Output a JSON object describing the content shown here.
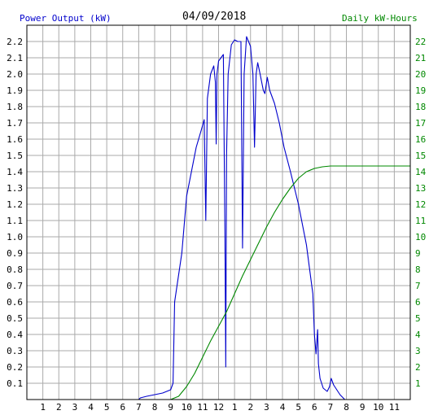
{
  "header": {
    "left_label": "Power Output (kW)",
    "date": "04/09/2018",
    "right_label": "Daily kW-Hours"
  },
  "colors": {
    "power": "#0000cc",
    "energy": "#008800",
    "grid": "#aaaaaa",
    "frame": "#000000"
  },
  "chart_data": {
    "type": "line",
    "title": "04/09/2018",
    "x_tick_labels": [
      "1",
      "2",
      "3",
      "4",
      "5",
      "6",
      "7",
      "8",
      "9",
      "10",
      "11",
      "12",
      "1",
      "2",
      "3",
      "4",
      "5",
      "6",
      "7",
      "8",
      "9",
      "10",
      "11"
    ],
    "x_unit": "hour of day (0-24)",
    "xlim": [
      0,
      24
    ],
    "ylim_left": [
      0,
      2.3
    ],
    "ylim_right": [
      0,
      23
    ],
    "y_left_ticks": [
      "0.1",
      "0.2",
      "0.3",
      "0.4",
      "0.5",
      "0.6",
      "0.7",
      "0.8",
      "0.9",
      "1.0",
      "1.1",
      "1.2",
      "1.3",
      "1.4",
      "1.5",
      "1.6",
      "1.7",
      "1.8",
      "1.9",
      "2.0",
      "2.1",
      "2.2"
    ],
    "y_right_ticks": [
      "1",
      "2",
      "3",
      "4",
      "5",
      "6",
      "7",
      "8",
      "9",
      "10",
      "11",
      "12",
      "13",
      "14",
      "15",
      "16",
      "17",
      "18",
      "19",
      "20",
      "21",
      "22"
    ],
    "grid": true,
    "series": [
      {
        "name": "Power Output (kW)",
        "axis": "left",
        "points": [
          [
            7.0,
            0.0
          ],
          [
            7.1,
            0.01
          ],
          [
            7.5,
            0.02
          ],
          [
            8.0,
            0.03
          ],
          [
            8.5,
            0.04
          ],
          [
            9.0,
            0.06
          ],
          [
            9.15,
            0.1
          ],
          [
            9.25,
            0.6
          ],
          [
            9.4,
            0.7
          ],
          [
            9.7,
            0.9
          ],
          [
            10.0,
            1.25
          ],
          [
            10.3,
            1.4
          ],
          [
            10.6,
            1.55
          ],
          [
            10.9,
            1.65
          ],
          [
            11.1,
            1.72
          ],
          [
            11.2,
            1.1
          ],
          [
            11.3,
            1.85
          ],
          [
            11.5,
            2.0
          ],
          [
            11.7,
            2.05
          ],
          [
            11.8,
            1.95
          ],
          [
            11.85,
            1.57
          ],
          [
            11.9,
            2.0
          ],
          [
            12.0,
            2.08
          ],
          [
            12.3,
            2.12
          ],
          [
            12.4,
            1.0
          ],
          [
            12.45,
            0.2
          ],
          [
            12.5,
            1.5
          ],
          [
            12.6,
            2.0
          ],
          [
            12.8,
            2.18
          ],
          [
            13.0,
            2.21
          ],
          [
            13.2,
            2.2
          ],
          [
            13.4,
            2.2
          ],
          [
            13.5,
            0.93
          ],
          [
            13.6,
            2.0
          ],
          [
            13.75,
            2.23
          ],
          [
            14.0,
            2.17
          ],
          [
            14.15,
            2.0
          ],
          [
            14.25,
            1.55
          ],
          [
            14.35,
            2.0
          ],
          [
            14.45,
            2.07
          ],
          [
            14.6,
            2.0
          ],
          [
            14.8,
            1.9
          ],
          [
            14.9,
            1.88
          ],
          [
            15.05,
            1.98
          ],
          [
            15.2,
            1.9
          ],
          [
            15.5,
            1.82
          ],
          [
            15.8,
            1.7
          ],
          [
            16.1,
            1.55
          ],
          [
            16.5,
            1.4
          ],
          [
            17.0,
            1.2
          ],
          [
            17.3,
            1.05
          ],
          [
            17.5,
            0.95
          ],
          [
            17.7,
            0.8
          ],
          [
            17.9,
            0.65
          ],
          [
            18.0,
            0.4
          ],
          [
            18.1,
            0.28
          ],
          [
            18.2,
            0.43
          ],
          [
            18.25,
            0.22
          ],
          [
            18.35,
            0.13
          ],
          [
            18.55,
            0.07
          ],
          [
            18.8,
            0.05
          ],
          [
            18.95,
            0.08
          ],
          [
            19.05,
            0.13
          ],
          [
            19.2,
            0.09
          ],
          [
            19.6,
            0.03
          ],
          [
            19.9,
            0.0
          ]
        ]
      },
      {
        "name": "Daily kW-Hours",
        "axis": "right",
        "points": [
          [
            9.0,
            0.0
          ],
          [
            9.5,
            0.2
          ],
          [
            10.0,
            0.8
          ],
          [
            10.5,
            1.6
          ],
          [
            11.0,
            2.6
          ],
          [
            11.5,
            3.6
          ],
          [
            12.0,
            4.5
          ],
          [
            12.5,
            5.4
          ],
          [
            13.0,
            6.5
          ],
          [
            13.5,
            7.6
          ],
          [
            14.0,
            8.6
          ],
          [
            14.5,
            9.6
          ],
          [
            15.0,
            10.6
          ],
          [
            15.5,
            11.5
          ],
          [
            16.0,
            12.3
          ],
          [
            16.5,
            13.0
          ],
          [
            17.0,
            13.6
          ],
          [
            17.5,
            14.0
          ],
          [
            18.0,
            14.2
          ],
          [
            18.5,
            14.3
          ],
          [
            19.0,
            14.35
          ],
          [
            20.0,
            14.35
          ],
          [
            22.0,
            14.35
          ],
          [
            24.0,
            14.35
          ]
        ]
      }
    ]
  }
}
